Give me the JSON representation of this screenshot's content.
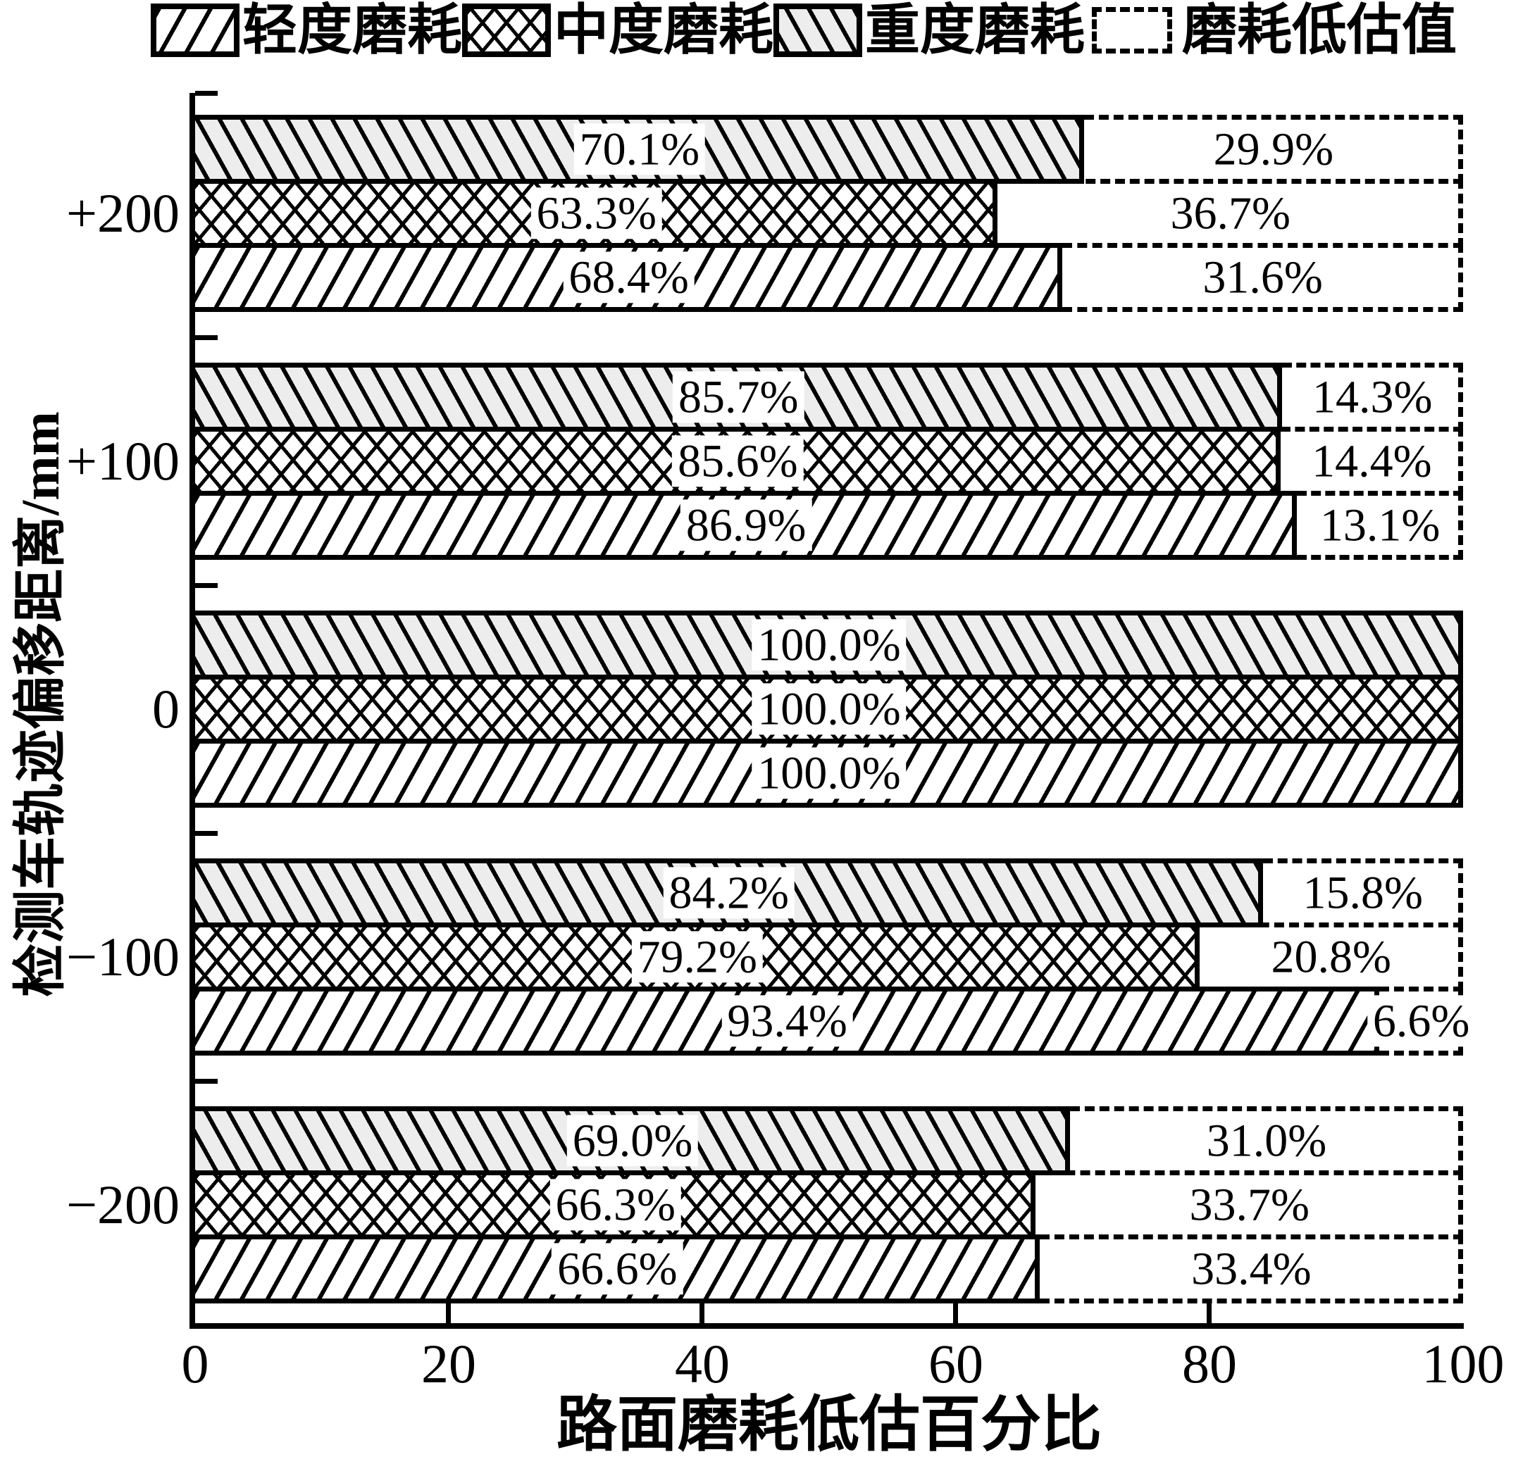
{
  "legend": {
    "items": [
      {
        "label": "轻度磨耗",
        "pattern": "light"
      },
      {
        "label": "中度磨耗",
        "pattern": "medium"
      },
      {
        "label": "重度磨耗",
        "pattern": "heavy"
      },
      {
        "label": "磨耗低估值",
        "pattern": "dashed"
      }
    ]
  },
  "axes": {
    "x": {
      "title": "路面磨耗低估百分比",
      "tick_labels": [
        "0",
        "20",
        "40",
        "60",
        "80",
        "100"
      ]
    },
    "y": {
      "title": "检测车轨迹偏移距离/mm",
      "categories": [
        "+200",
        "+100",
        "0",
        "−100",
        "−200"
      ]
    }
  },
  "chart_data": {
    "type": "bar",
    "orientation": "horizontal",
    "title": "",
    "xlabel": "路面磨耗低估百分比",
    "ylabel": "检测车轨迹偏移距离/mm",
    "xlim": [
      0,
      100
    ],
    "xticks": [
      0,
      20,
      40,
      60,
      80,
      100
    ],
    "grid": false,
    "legend_position": "top",
    "legend_entries": [
      "轻度磨耗",
      "中度磨耗",
      "重度磨耗",
      "磨耗低估值"
    ],
    "categories": [
      "+200",
      "+100",
      "0",
      "−100",
      "−200"
    ],
    "row_order_top_to_bottom": [
      "重度磨耗",
      "中度磨耗",
      "轻度磨耗"
    ],
    "series": [
      {
        "name": "重度磨耗",
        "pattern": "heavy",
        "values": [
          70.1,
          85.7,
          100.0,
          84.2,
          69.0
        ],
        "labels": [
          "70.1%",
          "85.7%",
          "100.0%",
          "84.2%",
          "69.0%"
        ],
        "underestimate_values": [
          29.9,
          14.3,
          0,
          15.8,
          31.0
        ],
        "underestimate_labels": [
          "29.9%",
          "14.3%",
          "",
          "15.8%",
          "31.0%"
        ]
      },
      {
        "name": "中度磨耗",
        "pattern": "medium",
        "values": [
          63.3,
          85.6,
          100.0,
          79.2,
          66.3
        ],
        "labels": [
          "63.3%",
          "85.6%",
          "100.0%",
          "79.2%",
          "66.3%"
        ],
        "underestimate_values": [
          36.7,
          14.4,
          0,
          20.8,
          33.7
        ],
        "underestimate_labels": [
          "36.7%",
          "14.4%",
          "",
          "20.8%",
          "33.7%"
        ]
      },
      {
        "name": "轻度磨耗",
        "pattern": "light",
        "values": [
          68.4,
          86.9,
          100.0,
          93.4,
          66.6
        ],
        "labels": [
          "68.4%",
          "86.9%",
          "100.0%",
          "93.4%",
          "66.6%"
        ],
        "underestimate_values": [
          31.6,
          13.1,
          0,
          6.6,
          33.4
        ],
        "underestimate_labels": [
          "31.6%",
          "13.1%",
          "",
          "6.6%",
          "33.4%"
        ]
      }
    ]
  },
  "colors": {
    "foreground": "#000000",
    "background": "#ffffff",
    "heavy_bar_fill": "#ededed"
  }
}
